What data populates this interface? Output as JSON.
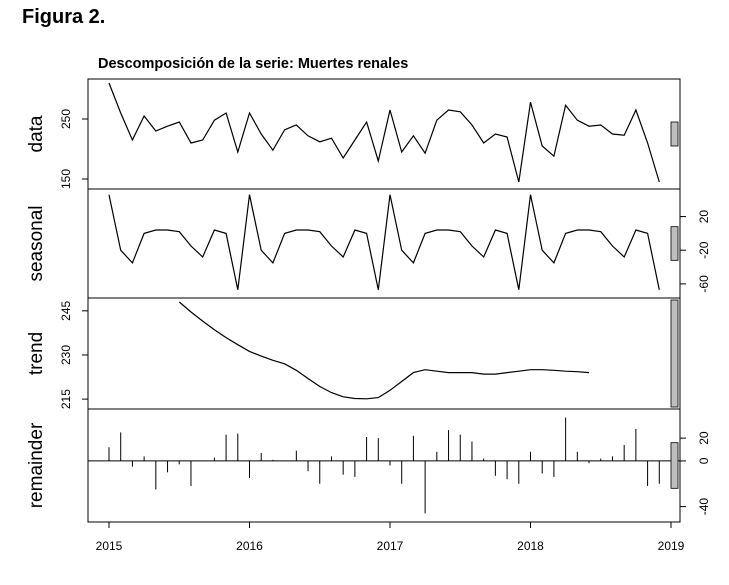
{
  "figure_label": "Figura 2.",
  "chart_data": {
    "type": "line",
    "title": "Descomposición de la serie: Muertes renales",
    "xlabel": "",
    "x": {
      "start_year": 2015,
      "frequency": 12,
      "range": [
        2015,
        2019
      ],
      "ticks": [
        2015,
        2016,
        2017,
        2018,
        2019
      ],
      "tick_labels": [
        "2015",
        "2016",
        "2017",
        "2018",
        "2019"
      ]
    },
    "panels": [
      {
        "name": "data",
        "kind": "line",
        "ylabel": "data",
        "ylim": [
          140,
          310
        ],
        "ticks": [
          150,
          250
        ],
        "tick_labels": [
          "150",
          "250"
        ],
        "tick_side": "left",
        "values": [
          310,
          260,
          215,
          255,
          230,
          238,
          245,
          210,
          215,
          248,
          260,
          195,
          260,
          225,
          198,
          232,
          240,
          222,
          212,
          218,
          185,
          215,
          245,
          180,
          265,
          195,
          222,
          193,
          248,
          265,
          262,
          240,
          210,
          225,
          220,
          145,
          278,
          205,
          188,
          273,
          248,
          238,
          240,
          225,
          223,
          265,
          210,
          145
        ]
      },
      {
        "name": "seasonal",
        "kind": "line",
        "ylabel": "seasonal",
        "ylim": [
          -72,
          48
        ],
        "ticks": [
          -60,
          -20,
          20
        ],
        "tick_labels": [
          "-60",
          "-20",
          "20"
        ],
        "tick_side": "right",
        "values": [
          46,
          -20,
          -35,
          0,
          4,
          4,
          2,
          -15,
          -28,
          4,
          0,
          -67
        ]
      },
      {
        "name": "trend",
        "kind": "line",
        "ylabel": "trend",
        "ylim": [
          213,
          248
        ],
        "ticks": [
          215,
          230,
          245
        ],
        "tick_labels": [
          "215",
          "230",
          "245"
        ],
        "tick_side": "left",
        "values": [
          248,
          244.6,
          241.5,
          238.6,
          235.9,
          233.5,
          231.2,
          229.6,
          228.2,
          227.0,
          224.8,
          222.0,
          219.3,
          217.2,
          215.8,
          215.2,
          215.1,
          215.5,
          218.0,
          221.0,
          224.0,
          225.0,
          224.5,
          224.0,
          224.0,
          224.0,
          223.5,
          223.5,
          224.0,
          224.5,
          225.0,
          225.0,
          224.8,
          224.5,
          224.3,
          224.0
        ]
      },
      {
        "name": "remainder",
        "kind": "bars",
        "ylabel": "remainder",
        "ylim": [
          -50,
          42
        ],
        "ticks": [
          -40,
          0,
          20
        ],
        "tick_labels": [
          "-40",
          "0",
          "20"
        ],
        "tick_side": "right",
        "values": [
          12,
          25,
          -5,
          4,
          -25,
          -10,
          -3,
          -22,
          0,
          3,
          23,
          24,
          -15,
          7,
          1,
          0,
          9,
          -9,
          -20,
          4,
          -12,
          -14,
          21,
          20,
          -4,
          -20,
          22,
          -46,
          8,
          27,
          23,
          17,
          2,
          -13,
          -16,
          -20,
          8,
          -11,
          -14,
          38,
          8,
          -2,
          2,
          4,
          14,
          28,
          -22,
          -20
        ]
      }
    ],
    "legend": "none",
    "grid": false
  }
}
